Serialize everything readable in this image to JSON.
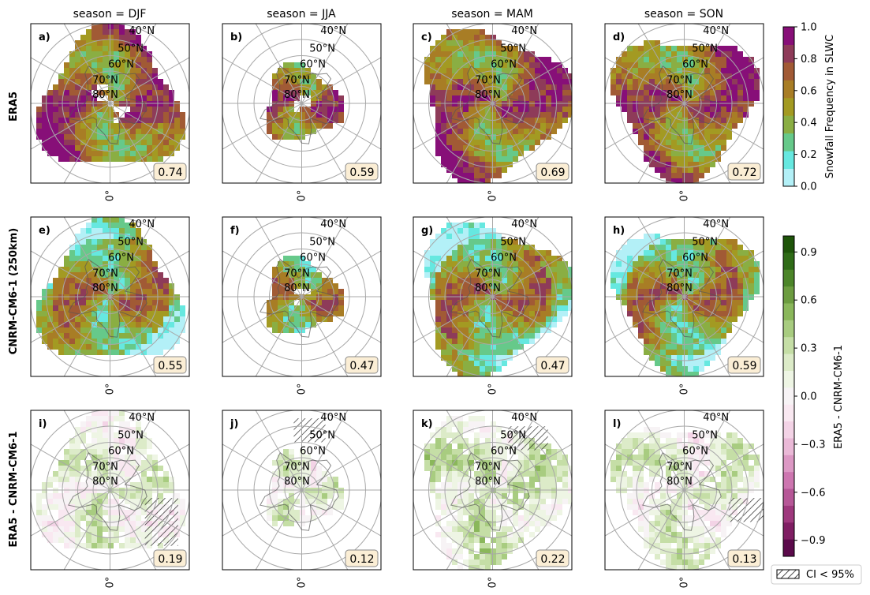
{
  "figure": {
    "column_titles": [
      "season = DJF",
      "season = JJA",
      "season = MAM",
      "season = SON"
    ],
    "row_labels": [
      "ERA5",
      "CNRM-CM6-1 (250km)",
      "ERA5 - CNRM-CM6-1"
    ],
    "latitude_labels": [
      "40°N",
      "50°N",
      "60°N",
      "70°N",
      "80°N"
    ],
    "longitude_label": "0°",
    "legend_label": "CI < 95%"
  },
  "chart_data": [
    {
      "type": "heatmap",
      "row": "ERA5",
      "colorbar": "Snowfall Frequency in SLWC",
      "panels": [
        {
          "label": "a)",
          "season": "DJF",
          "value": "0.74"
        },
        {
          "label": "b)",
          "season": "JJA",
          "value": "0.59"
        },
        {
          "label": "c)",
          "season": "MAM",
          "value": "0.69"
        },
        {
          "label": "d)",
          "season": "SON",
          "value": "0.72"
        }
      ]
    },
    {
      "type": "heatmap",
      "row": "CNRM-CM6-1 (250km)",
      "colorbar": "Snowfall Frequency in SLWC",
      "panels": [
        {
          "label": "e)",
          "season": "DJF",
          "value": "0.55"
        },
        {
          "label": "f)",
          "season": "JJA",
          "value": "0.47"
        },
        {
          "label": "g)",
          "season": "MAM",
          "value": "0.47"
        },
        {
          "label": "h)",
          "season": "SON",
          "value": "0.59"
        }
      ]
    },
    {
      "type": "heatmap",
      "row": "ERA5 - CNRM-CM6-1",
      "colorbar": "ERA5 - CNRM-CM6-1",
      "panels": [
        {
          "label": "i)",
          "season": "DJF",
          "value": "0.19"
        },
        {
          "label": "j)",
          "season": "JJA",
          "value": "0.12"
        },
        {
          "label": "k)",
          "season": "MAM",
          "value": "0.22"
        },
        {
          "label": "l)",
          "season": "SON",
          "value": "0.13"
        }
      ]
    }
  ],
  "colorbars": [
    {
      "label": "Snowfall Frequency in SLWC",
      "range": [
        0.0,
        1.0
      ],
      "ticks": [
        "0.0",
        "0.2",
        "0.4",
        "0.6",
        "0.8",
        "1.0"
      ],
      "colors": [
        "#b3f0f7",
        "#66e8e0",
        "#66c98a",
        "#8aae43",
        "#a39a22",
        "#a87d25",
        "#a15a35",
        "#8e3b59",
        "#870f78"
      ]
    },
    {
      "label": "ERA5 - CNRM-CM6-1",
      "range": [
        -1.0,
        1.0
      ],
      "ticks": [
        "0.9",
        "0.6",
        "0.3",
        "0.0",
        "−0.3",
        "−0.6",
        "−0.9"
      ],
      "colors": [
        "#1e5409",
        "#2f6b17",
        "#4c8529",
        "#6c9c40",
        "#8ab75b",
        "#a8cc80",
        "#c5dea6",
        "#dcebc8",
        "#eef5e4",
        "#f7f3f5",
        "#f9e8f1",
        "#f3d3e6",
        "#eab9d7",
        "#dc98c4",
        "#cd76b0",
        "#b65797",
        "#9e387d",
        "#7f1e63",
        "#5b0a4b"
      ]
    }
  ]
}
